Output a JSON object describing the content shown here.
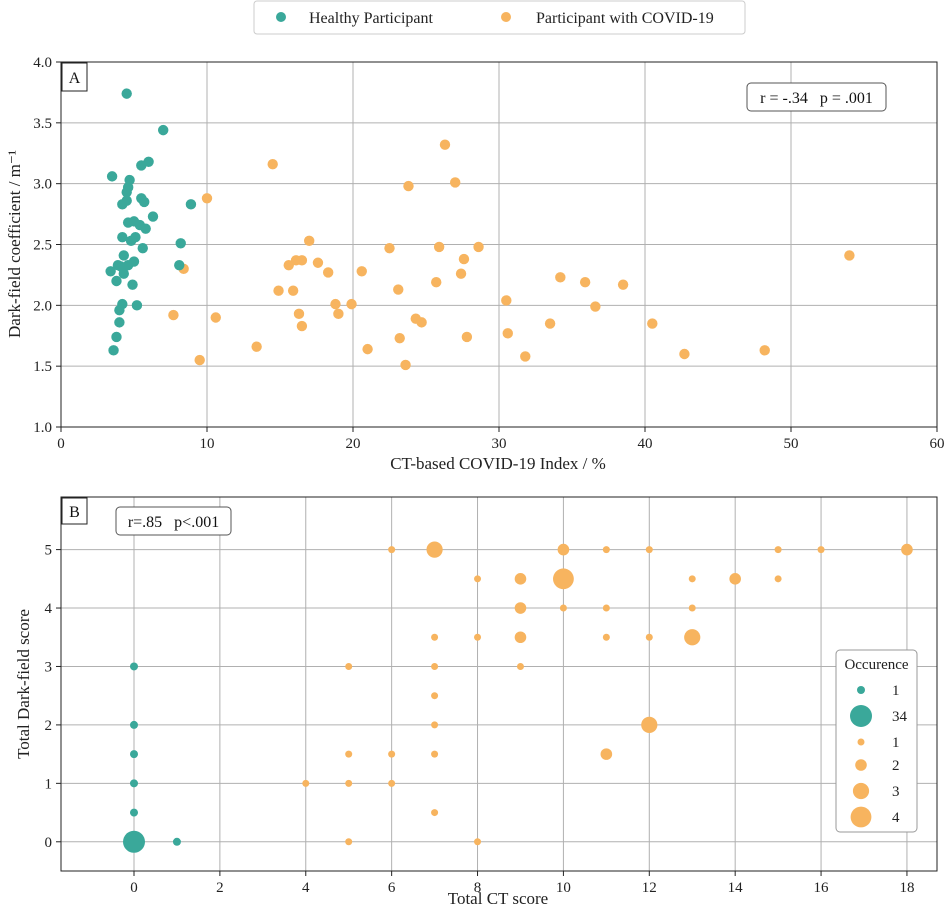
{
  "colors": {
    "healthy": "#3aa89a",
    "covid": "#f7b45f"
  },
  "legend": {
    "healthy_label": "Healthy Participant",
    "covid_label": "Participant with COVID-19"
  },
  "chart_data": [
    {
      "id": "A",
      "type": "scatter",
      "panel_label": "A",
      "xlabel": "CT-based COVID-19 Index / %",
      "ylabel": "Dark-field coefficient / m⁻¹",
      "xlim": [
        0,
        60
      ],
      "ylim": [
        1.0,
        4.0
      ],
      "xticks": [
        0,
        10,
        20,
        30,
        40,
        50,
        60
      ],
      "yticks": [
        1.0,
        1.5,
        2.0,
        2.5,
        3.0,
        3.5,
        4.0
      ],
      "annotation": "r = -.34   p = .001",
      "series": [
        {
          "name": "Healthy Participant",
          "color_key": "healthy",
          "points": [
            [
              4.5,
              3.74
            ],
            [
              7.0,
              3.44
            ],
            [
              6.0,
              3.18
            ],
            [
              5.5,
              3.15
            ],
            [
              3.5,
              3.06
            ],
            [
              4.7,
              3.03
            ],
            [
              4.6,
              2.97
            ],
            [
              4.5,
              2.93
            ],
            [
              5.5,
              2.88
            ],
            [
              4.5,
              2.86
            ],
            [
              5.7,
              2.85
            ],
            [
              4.2,
              2.83
            ],
            [
              8.9,
              2.83
            ],
            [
              6.3,
              2.73
            ],
            [
              4.6,
              2.68
            ],
            [
              5.0,
              2.69
            ],
            [
              5.4,
              2.66
            ],
            [
              5.8,
              2.63
            ],
            [
              4.2,
              2.56
            ],
            [
              5.1,
              2.56
            ],
            [
              4.8,
              2.53
            ],
            [
              8.2,
              2.51
            ],
            [
              5.6,
              2.47
            ],
            [
              4.3,
              2.41
            ],
            [
              5.0,
              2.36
            ],
            [
              4.6,
              2.33
            ],
            [
              3.9,
              2.33
            ],
            [
              4.1,
              2.32
            ],
            [
              8.1,
              2.33
            ],
            [
              3.4,
              2.28
            ],
            [
              4.3,
              2.26
            ],
            [
              3.8,
              2.2
            ],
            [
              4.9,
              2.17
            ],
            [
              4.2,
              2.01
            ],
            [
              5.2,
              2.0
            ],
            [
              4.0,
              1.96
            ],
            [
              4.0,
              1.86
            ],
            [
              3.8,
              1.74
            ],
            [
              3.6,
              1.63
            ]
          ]
        },
        {
          "name": "Participant with COVID-19",
          "color_key": "covid",
          "points": [
            [
              26.3,
              3.32
            ],
            [
              14.5,
              3.16
            ],
            [
              27.0,
              3.01
            ],
            [
              23.8,
              2.98
            ],
            [
              10.0,
              2.88
            ],
            [
              17.0,
              2.53
            ],
            [
              22.5,
              2.47
            ],
            [
              25.9,
              2.48
            ],
            [
              28.6,
              2.48
            ],
            [
              54.0,
              2.41
            ],
            [
              16.1,
              2.37
            ],
            [
              16.5,
              2.37
            ],
            [
              15.6,
              2.33
            ],
            [
              17.6,
              2.35
            ],
            [
              27.6,
              2.38
            ],
            [
              8.4,
              2.3
            ],
            [
              18.3,
              2.27
            ],
            [
              20.6,
              2.28
            ],
            [
              27.4,
              2.26
            ],
            [
              34.2,
              2.23
            ],
            [
              25.7,
              2.19
            ],
            [
              35.9,
              2.19
            ],
            [
              38.5,
              2.17
            ],
            [
              23.1,
              2.13
            ],
            [
              14.9,
              2.12
            ],
            [
              15.9,
              2.12
            ],
            [
              18.8,
              2.01
            ],
            [
              19.9,
              2.01
            ],
            [
              30.5,
              2.04
            ],
            [
              36.6,
              1.99
            ],
            [
              16.3,
              1.93
            ],
            [
              19.0,
              1.93
            ],
            [
              7.7,
              1.92
            ],
            [
              10.6,
              1.9
            ],
            [
              24.3,
              1.89
            ],
            [
              24.7,
              1.86
            ],
            [
              33.5,
              1.85
            ],
            [
              40.5,
              1.85
            ],
            [
              16.5,
              1.83
            ],
            [
              30.6,
              1.77
            ],
            [
              23.2,
              1.73
            ],
            [
              27.8,
              1.74
            ],
            [
              13.4,
              1.66
            ],
            [
              21.0,
              1.64
            ],
            [
              48.2,
              1.63
            ],
            [
              42.7,
              1.6
            ],
            [
              31.8,
              1.58
            ],
            [
              9.5,
              1.55
            ],
            [
              23.6,
              1.51
            ]
          ]
        }
      ]
    },
    {
      "id": "B",
      "type": "bubble",
      "panel_label": "B",
      "xlabel": "Total CT score",
      "ylabel": "Total Dark-field score",
      "xlim": [
        -1.7,
        18.7
      ],
      "ylim": [
        -0.5,
        5.9
      ],
      "xticks": [
        0,
        2,
        4,
        6,
        8,
        10,
        12,
        14,
        16,
        18
      ],
      "yticks": [
        0,
        1,
        2,
        3,
        4,
        5
      ],
      "annotation": "r=.85   p<.001",
      "legend_title": "Occurence",
      "legend_entries": [
        {
          "label": "1",
          "color_key": "healthy",
          "count": 1
        },
        {
          "label": "34",
          "color_key": "healthy",
          "count": 34
        },
        {
          "label": "1",
          "color_key": "covid",
          "count": 1
        },
        {
          "label": "2",
          "color_key": "covid",
          "count": 2
        },
        {
          "label": "3",
          "color_key": "covid",
          "count": 3
        },
        {
          "label": "4",
          "color_key": "covid",
          "count": 4
        }
      ],
      "series": [
        {
          "name": "Healthy Participant",
          "color_key": "healthy",
          "points": [
            [
              0,
              0,
              34
            ],
            [
              1,
              0,
              1
            ],
            [
              0,
              0.5,
              1
            ],
            [
              0,
              1,
              1
            ],
            [
              0,
              1.5,
              1
            ],
            [
              0,
              2,
              1
            ],
            [
              0,
              3,
              1
            ]
          ]
        },
        {
          "name": "Participant with COVID-19",
          "color_key": "covid",
          "points": [
            [
              6,
              5,
              1
            ],
            [
              7,
              5,
              3
            ],
            [
              10,
              5,
              2
            ],
            [
              11,
              5,
              1
            ],
            [
              12,
              5,
              1
            ],
            [
              15,
              5,
              1
            ],
            [
              16,
              5,
              1
            ],
            [
              18,
              5,
              2
            ],
            [
              8,
              4.5,
              1
            ],
            [
              9,
              4.5,
              2
            ],
            [
              10,
              4.5,
              4
            ],
            [
              13,
              4.5,
              1
            ],
            [
              14,
              4.5,
              2
            ],
            [
              15,
              4.5,
              1
            ],
            [
              9,
              4,
              2
            ],
            [
              10,
              4,
              1
            ],
            [
              11,
              4,
              1
            ],
            [
              13,
              4,
              1
            ],
            [
              7,
              3.5,
              1
            ],
            [
              8,
              3.5,
              1
            ],
            [
              9,
              3.5,
              2
            ],
            [
              11,
              3.5,
              1
            ],
            [
              12,
              3.5,
              1
            ],
            [
              13,
              3.5,
              3
            ],
            [
              5,
              3,
              1
            ],
            [
              7,
              3,
              1
            ],
            [
              9,
              3,
              1
            ],
            [
              7,
              2.5,
              1
            ],
            [
              7,
              2,
              1
            ],
            [
              12,
              2,
              3
            ],
            [
              5,
              1.5,
              1
            ],
            [
              6,
              1.5,
              1
            ],
            [
              7,
              1.5,
              1
            ],
            [
              11,
              1.5,
              2
            ],
            [
              4,
              1,
              1
            ],
            [
              5,
              1,
              1
            ],
            [
              6,
              1,
              1
            ],
            [
              7,
              0.5,
              1
            ],
            [
              5,
              0,
              1
            ],
            [
              8,
              0,
              1
            ]
          ]
        }
      ]
    }
  ]
}
